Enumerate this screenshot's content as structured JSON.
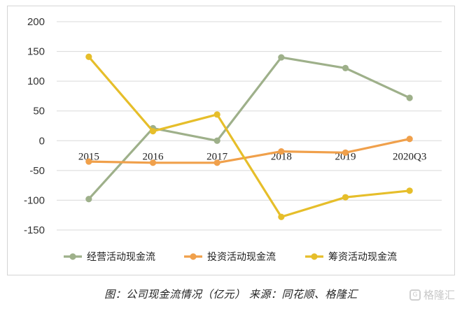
{
  "caption": "图：公司现金流情况（亿元） 来源：同花顺、格隆汇",
  "watermark": {
    "text": "格隆汇",
    "icon": "glh-logo-icon"
  },
  "colors": {
    "operating": "#9EB08A",
    "investing": "#F0A04B",
    "financing": "#E6BE2A",
    "grid": "#d9d9d9"
  },
  "chart_data": {
    "type": "line",
    "categories": [
      "2015",
      "2016",
      "2017",
      "2018",
      "2019",
      "2020Q3"
    ],
    "series": [
      {
        "name": "经营活动现金流",
        "values": [
          -98,
          21,
          0,
          140,
          122,
          72
        ],
        "color": "#9EB08A"
      },
      {
        "name": "投资活动现金流",
        "values": [
          -35,
          -37,
          -37,
          -18,
          -20,
          3
        ],
        "color": "#F0A04B"
      },
      {
        "name": "筹资活动现金流",
        "values": [
          141,
          16,
          44,
          -128,
          -95,
          -84
        ],
        "color": "#E6BE2A"
      }
    ],
    "ylim": [
      -150,
      200
    ],
    "yticks": [
      -150,
      -100,
      -50,
      0,
      50,
      100,
      150,
      200
    ],
    "grid": true,
    "legend": "bottom",
    "title": "",
    "xlabel": "",
    "ylabel": ""
  }
}
